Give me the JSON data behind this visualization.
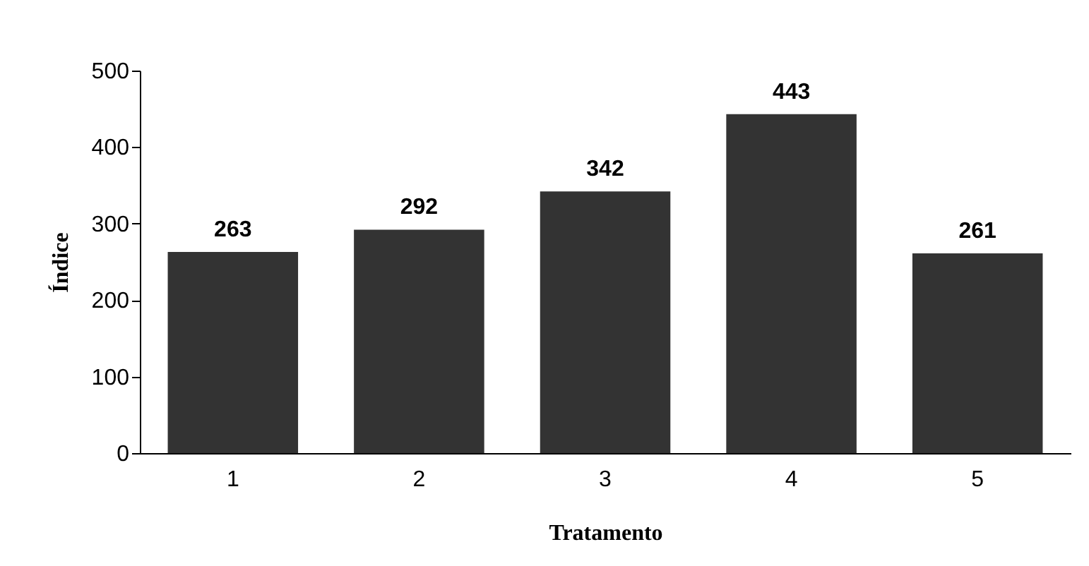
{
  "chart_data": {
    "type": "bar",
    "xlabel": "Tratamento",
    "ylabel": "Índice",
    "categories": [
      "1",
      "2",
      "3",
      "4",
      "5"
    ],
    "values": [
      263,
      292,
      342,
      443,
      261
    ],
    "color": "#333333",
    "ylim": [
      0,
      500
    ],
    "yticks": [
      0,
      100,
      200,
      300,
      400,
      500
    ],
    "grid": false,
    "data_labels": true
  }
}
